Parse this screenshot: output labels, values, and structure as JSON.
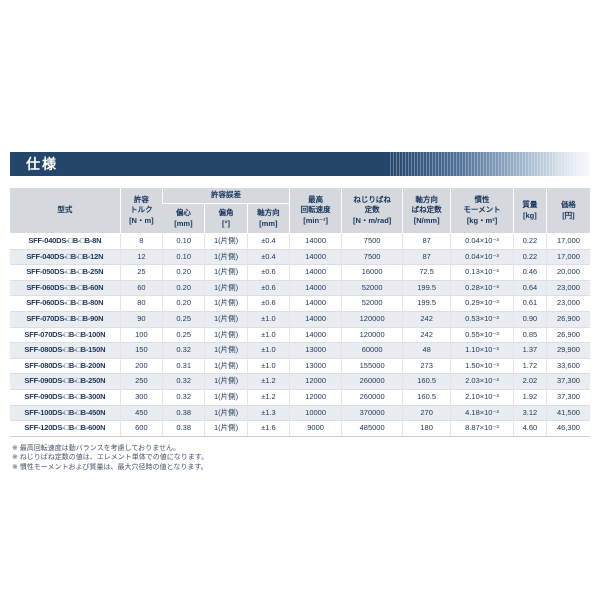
{
  "title": "仕様",
  "table": {
    "headers": {
      "model": "型式",
      "torque": "許容\nトルク\n[N・m]",
      "tolerance_group": "許容誤差",
      "eccentricity": "偏心\n[mm]",
      "angular": "偏角\n[°]",
      "axial": "軸方向\n[mm]",
      "max_speed": "最高\n回転速度\n[min⁻¹]",
      "torsional_spring": "ねじりばね\n定数\n[N・m/rad]",
      "axial_spring": "軸方向\nばね定数\n[N/mm]",
      "inertia": "慣性\nモーメント\n[kg・m²]",
      "mass": "質量\n[kg]",
      "price": "価格\n[円]"
    },
    "rows": [
      [
        "SFF-040DS-□B-□B-8N",
        "8",
        "0.10",
        "1(片側)",
        "±0.4",
        "14000",
        "7500",
        "87",
        "0.04×10⁻³",
        "0.22",
        "17,000"
      ],
      [
        "SFF-040DS-□B-□B-12N",
        "12",
        "0.10",
        "1(片側)",
        "±0.4",
        "14000",
        "7500",
        "87",
        "0.04×10⁻³",
        "0.22",
        "17,000"
      ],
      [
        "SFF-050DS-□B-□B-25N",
        "25",
        "0.20",
        "1(片側)",
        "±0.6",
        "14000",
        "16000",
        "72.5",
        "0.13×10⁻³",
        "0.46",
        "20,000"
      ],
      [
        "SFF-060DS-□B-□B-60N",
        "60",
        "0.20",
        "1(片側)",
        "±0.6",
        "14000",
        "52000",
        "199.5",
        "0.28×10⁻³",
        "0.64",
        "23,000"
      ],
      [
        "SFF-060DS-□B-□B-80N",
        "80",
        "0.20",
        "1(片側)",
        "±0.6",
        "14000",
        "52000",
        "199.5",
        "0.29×10⁻³",
        "0.61",
        "23,000"
      ],
      [
        "SFF-070DS-□B-□B-90N",
        "90",
        "0.25",
        "1(片側)",
        "±1.0",
        "14000",
        "120000",
        "242",
        "0.53×10⁻³",
        "0.90",
        "26,900"
      ],
      [
        "SFF-070DS-□B-□B-100N",
        "100",
        "0.25",
        "1(片側)",
        "±1.0",
        "14000",
        "120000",
        "242",
        "0.55×10⁻³",
        "0.85",
        "26,900"
      ],
      [
        "SFF-080DS-□B-□B-150N",
        "150",
        "0.32",
        "1(片側)",
        "±1.0",
        "13000",
        "60000",
        "48",
        "1.10×10⁻³",
        "1.37",
        "29,900"
      ],
      [
        "SFF-080DS-□B-□B-200N",
        "200",
        "0.31",
        "1(片側)",
        "±1.0",
        "13000",
        "155000",
        "273",
        "1.50×10⁻³",
        "1.72",
        "33,600"
      ],
      [
        "SFF-090DS-□B-□B-250N",
        "250",
        "0.32",
        "1(片側)",
        "±1.2",
        "12000",
        "260000",
        "160.5",
        "2.03×10⁻³",
        "2.02",
        "37,300"
      ],
      [
        "SFF-090DS-□B-□B-300N",
        "300",
        "0.32",
        "1(片側)",
        "±1.2",
        "12000",
        "260000",
        "160.5",
        "2.10×10⁻³",
        "1.92",
        "37,300"
      ],
      [
        "SFF-100DS-□B-□B-450N",
        "450",
        "0.38",
        "1(片側)",
        "±1.3",
        "10000",
        "370000",
        "270",
        "4.18×10⁻³",
        "3.12",
        "41,500"
      ],
      [
        "SFF-120DS-□B-□B-600N",
        "600",
        "0.38",
        "1(片側)",
        "±1.6",
        "9000",
        "485000",
        "180",
        "8.87×10⁻³",
        "4.60",
        "46,300"
      ]
    ]
  },
  "notes": [
    "※ 最高回転速度は動バランスを考慮しておりません。",
    "※ ねじりばね定数の値は、エレメント単体での値になります。",
    "※ 慣性モーメントおよび質量は、最大穴径時の値となります。"
  ]
}
